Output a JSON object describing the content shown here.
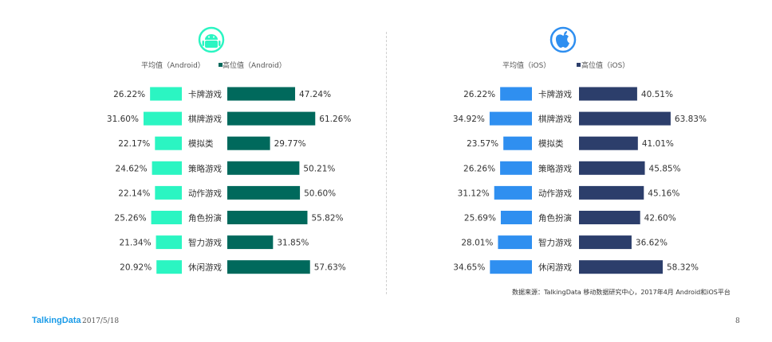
{
  "chart_data": [
    {
      "type": "bar",
      "platform_icon": "android-icon",
      "categories": [
        "卡牌游戏",
        "棋牌游戏",
        "模拟类",
        "策略游戏",
        "动作游戏",
        "角色扮演",
        "智力游戏",
        "休闲游戏"
      ],
      "series": [
        {
          "name": "平均值（Android）",
          "color": "#2bf5c2",
          "values": [
            26.22,
            31.6,
            22.17,
            24.62,
            22.14,
            25.26,
            21.34,
            20.92
          ],
          "labels": [
            "26.22%",
            "31.60%",
            "22.17%",
            "24.62%",
            "22.14%",
            "25.26%",
            "21.34%",
            "20.92%"
          ]
        },
        {
          "name": "高位值（Android）",
          "color": "#00695c",
          "values": [
            47.24,
            61.26,
            29.77,
            50.21,
            50.6,
            55.82,
            31.85,
            57.63
          ],
          "labels": [
            "47.24%",
            "61.26%",
            "29.77%",
            "50.21%",
            "50.60%",
            "55.82%",
            "31.85%",
            "57.63%"
          ]
        }
      ],
      "legend": "top"
    },
    {
      "type": "bar",
      "platform_icon": "apple-icon",
      "categories": [
        "卡牌游戏",
        "棋牌游戏",
        "模拟类",
        "策略游戏",
        "动作游戏",
        "角色扮演",
        "智力游戏",
        "休闲游戏"
      ],
      "series": [
        {
          "name": "平均值（iOS）",
          "color": "#2f8ff0",
          "values": [
            26.22,
            34.92,
            23.57,
            26.26,
            31.12,
            25.69,
            28.01,
            34.65
          ],
          "labels": [
            "26.22%",
            "34.92%",
            "23.57%",
            "26.26%",
            "31.12%",
            "25.69%",
            "28.01%",
            "34.65%"
          ]
        },
        {
          "name": "高位值（iOS）",
          "color": "#2c3e6b",
          "values": [
            40.51,
            63.83,
            41.01,
            45.85,
            45.16,
            42.6,
            36.62,
            58.32
          ],
          "labels": [
            "40.51%",
            "63.83%",
            "41.01%",
            "45.85%",
            "45.16%",
            "42.60%",
            "36.62%",
            "58.32%"
          ]
        }
      ],
      "legend": "top"
    }
  ],
  "source_note": "数据来源：TalkingData 移动数据研究中心，2017年4月 Android和iOS平台",
  "footer": {
    "brand": "TalkingData",
    "date": "2017/5/18",
    "page": "8"
  }
}
